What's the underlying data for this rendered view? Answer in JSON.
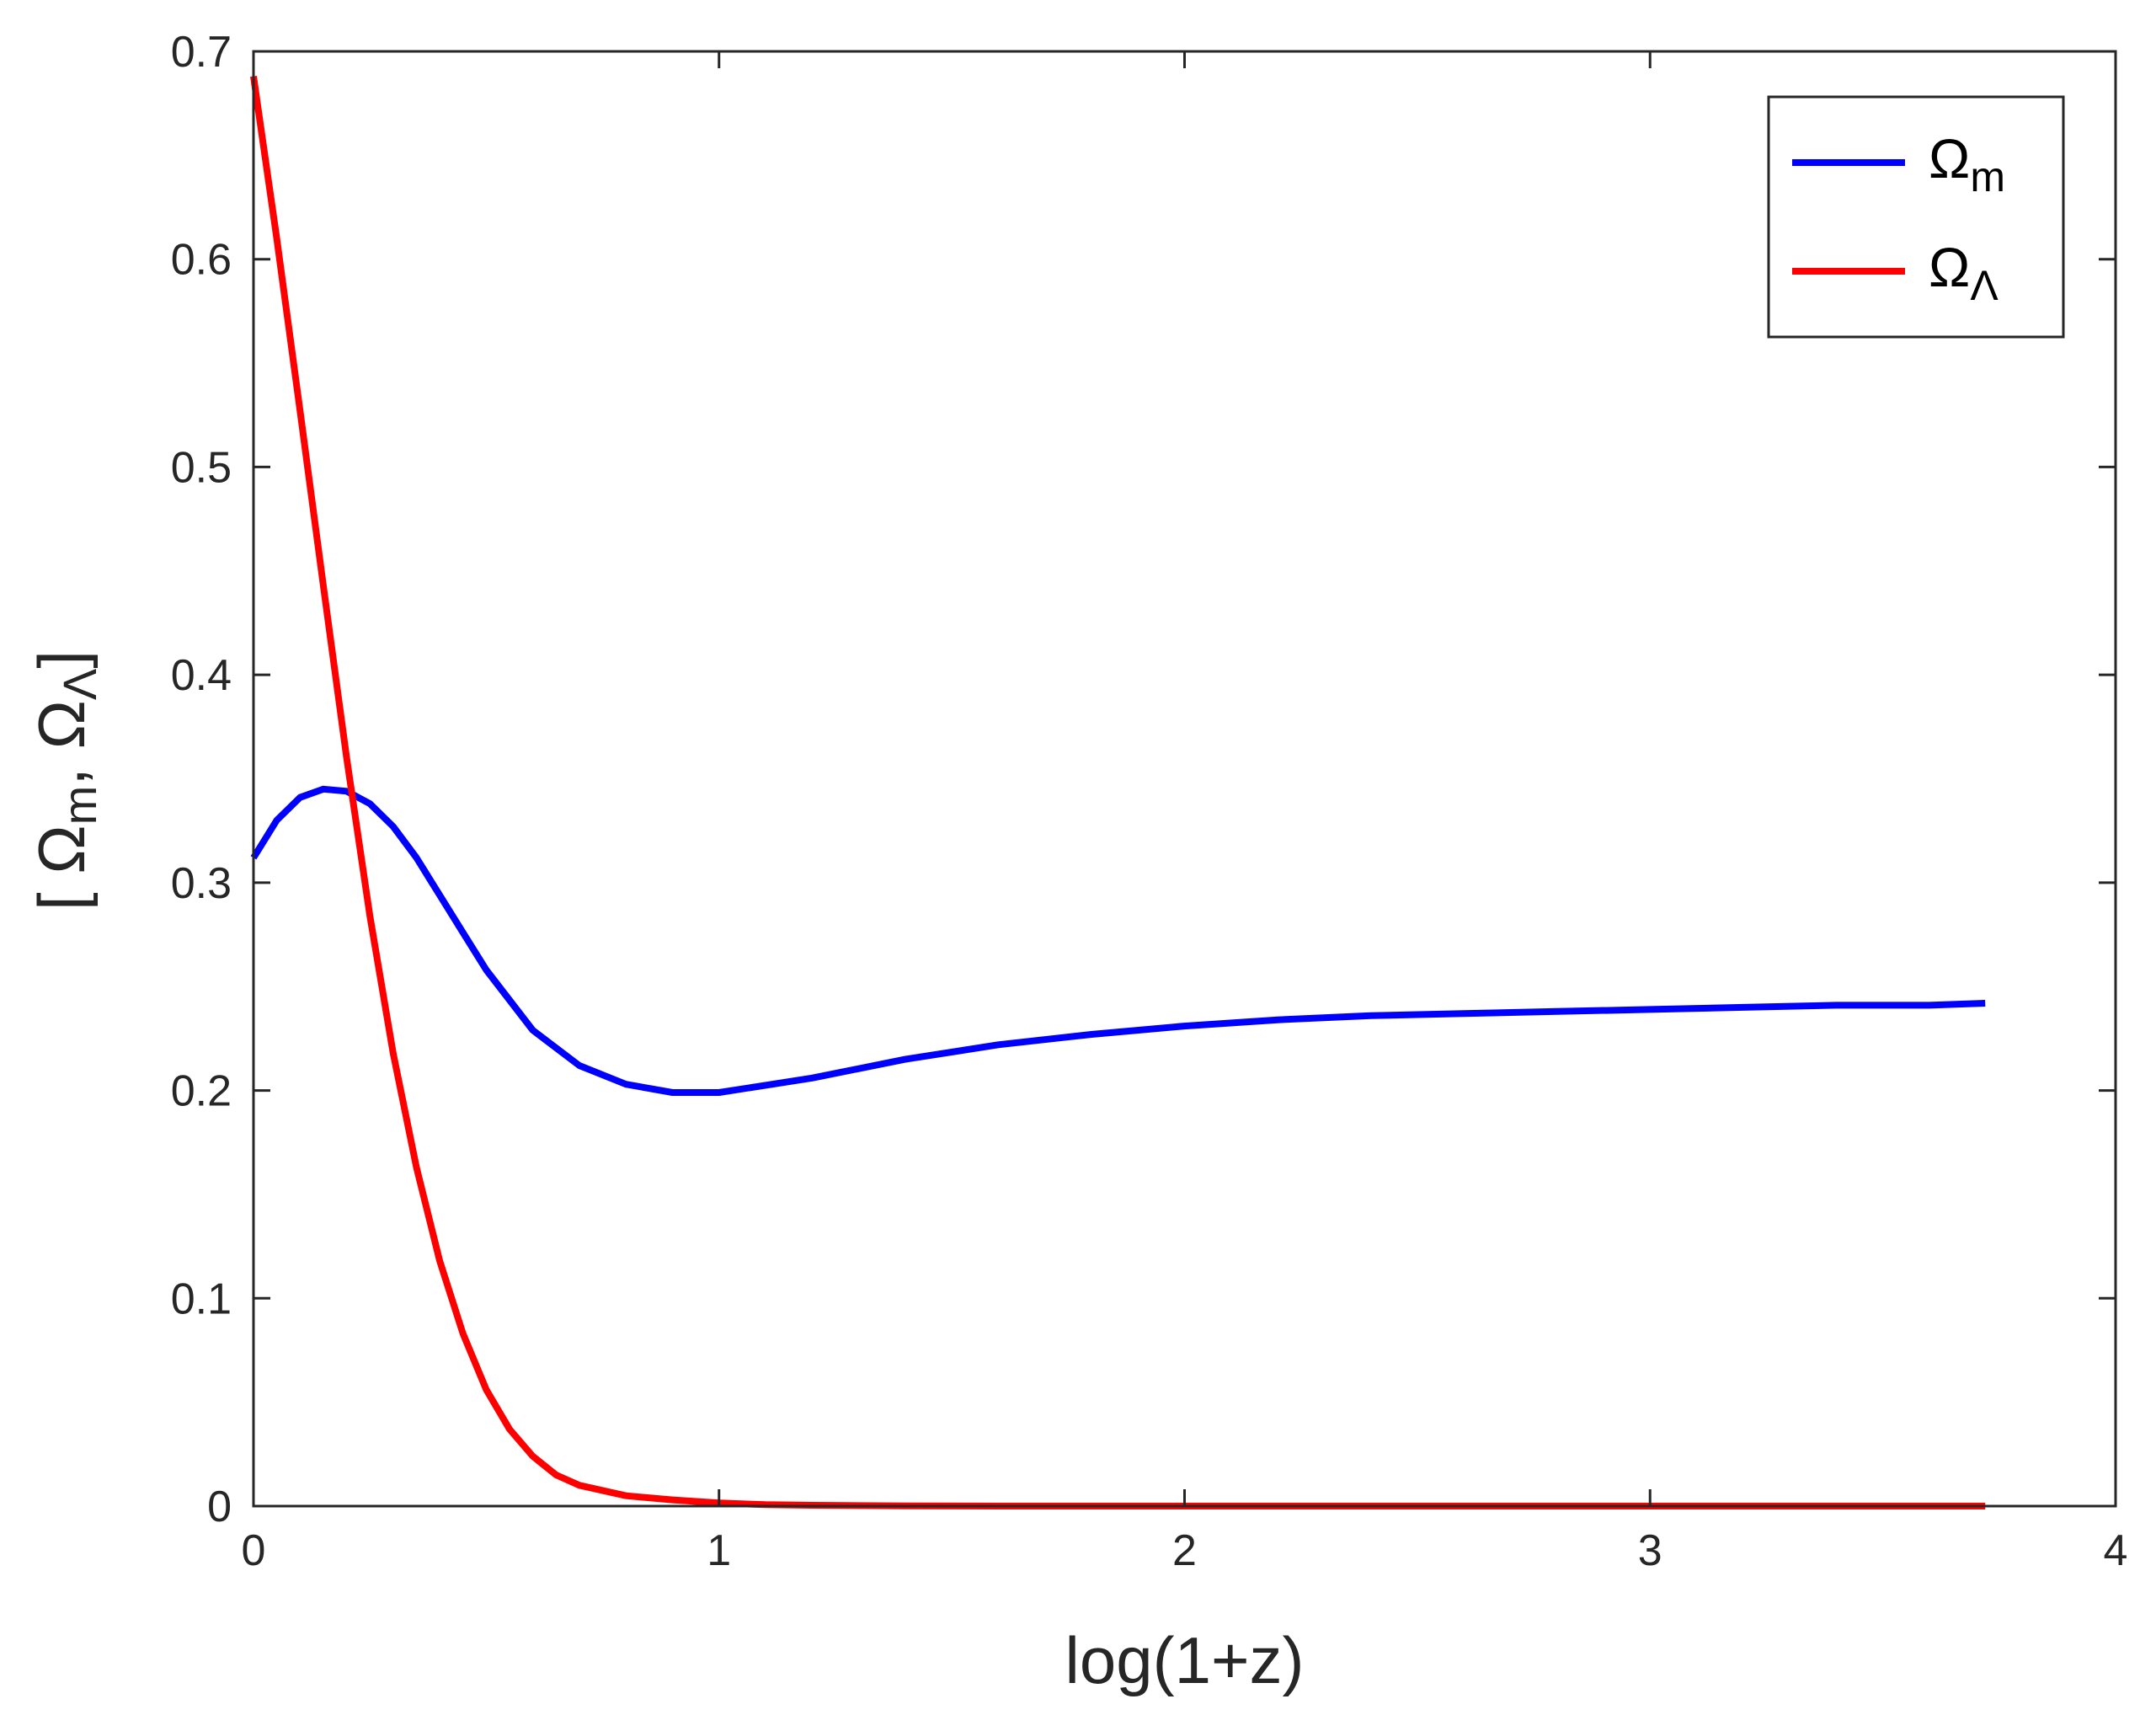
{
  "chart_data": {
    "type": "line",
    "xlabel": "log(1+z)",
    "ylabel": "[ Ωm, ΩΛ]",
    "ylabel_parts": {
      "open": "[ ",
      "sym1": "Ω",
      "sub1": "m",
      "sep": ", ",
      "sym2": "Ω",
      "sub2": "Λ",
      "close": "]"
    },
    "xlim": [
      0,
      4
    ],
    "ylim": [
      0,
      0.7
    ],
    "xticks": [
      0,
      1,
      2,
      3,
      4
    ],
    "xtick_labels": [
      "0",
      "1",
      "2",
      "3",
      "4"
    ],
    "yticks": [
      0,
      0.1,
      0.2,
      0.3,
      0.4,
      0.5,
      0.6,
      0.7
    ],
    "ytick_labels": [
      "0",
      "0.1",
      "0.2",
      "0.3",
      "0.4",
      "0.5",
      "0.6",
      "0.7"
    ],
    "grid": false,
    "legend_position": "top-right",
    "series": [
      {
        "name": "Ωm",
        "label_symbol": "Ω",
        "label_sub": "m",
        "color": "#0000ff",
        "x": [
          0,
          0.05,
          0.1,
          0.15,
          0.2,
          0.25,
          0.3,
          0.35,
          0.4,
          0.45,
          0.5,
          0.6,
          0.7,
          0.8,
          0.9,
          1.0,
          1.2,
          1.4,
          1.6,
          1.8,
          2.0,
          2.2,
          2.4,
          2.6,
          2.8,
          3.0,
          3.2,
          3.4,
          3.6,
          3.72
        ],
        "y": [
          0.312,
          0.33,
          0.341,
          0.345,
          0.344,
          0.338,
          0.327,
          0.312,
          0.294,
          0.276,
          0.258,
          0.229,
          0.212,
          0.203,
          0.199,
          0.199,
          0.206,
          0.215,
          0.222,
          0.227,
          0.231,
          0.234,
          0.236,
          0.237,
          0.238,
          0.239,
          0.24,
          0.241,
          0.241,
          0.242
        ]
      },
      {
        "name": "ΩΛ",
        "label_symbol": "Ω",
        "label_sub": "Λ",
        "color": "#ff0000",
        "x": [
          0,
          0.05,
          0.1,
          0.15,
          0.2,
          0.25,
          0.3,
          0.35,
          0.4,
          0.45,
          0.5,
          0.55,
          0.6,
          0.65,
          0.7,
          0.8,
          0.9,
          1.0,
          1.1,
          1.2,
          1.4,
          1.6,
          2.0,
          2.5,
          3.0,
          3.5,
          3.72
        ],
        "y": [
          0.688,
          0.61,
          0.527,
          0.443,
          0.36,
          0.284,
          0.218,
          0.163,
          0.118,
          0.083,
          0.056,
          0.037,
          0.024,
          0.015,
          0.01,
          0.005,
          0.003,
          0.0015,
          0.0007,
          0.0004,
          0.0001,
          0.0,
          0.0,
          0.0,
          0.0,
          0.0,
          0.0
        ]
      }
    ]
  }
}
